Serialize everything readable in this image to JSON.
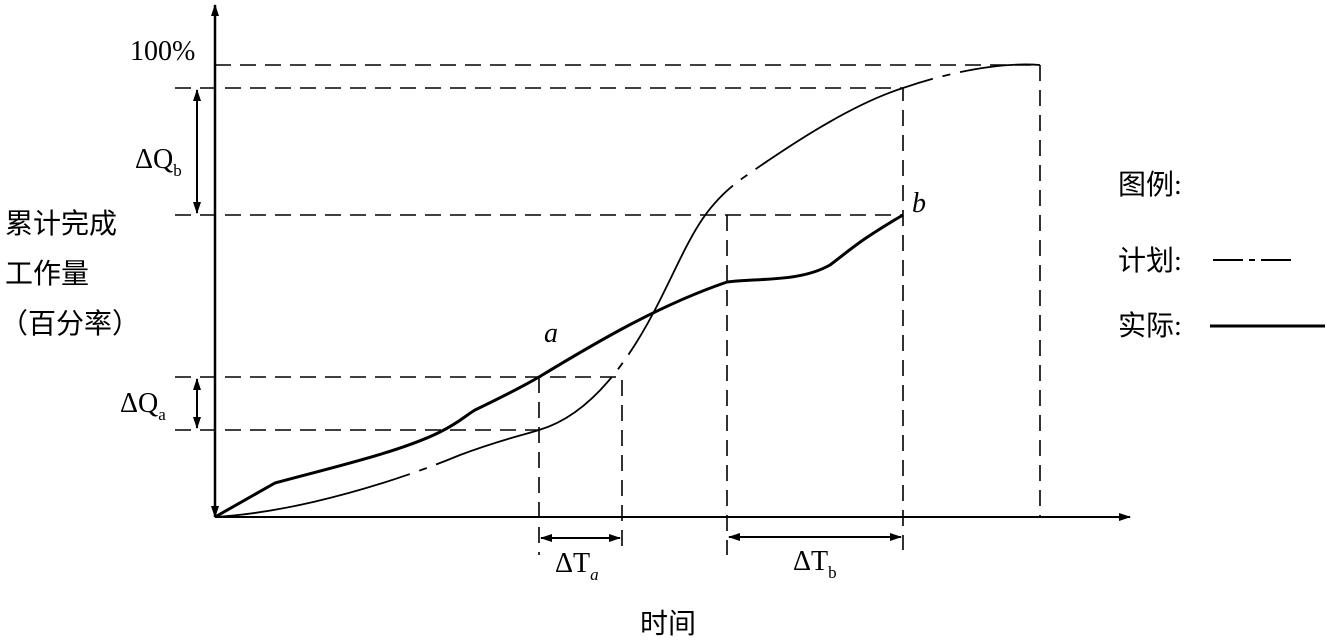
{
  "axis": {
    "y_max_label": "100%",
    "y_label": [
      "累计完成",
      "工作量",
      "（百分率）"
    ],
    "x_label": "时间"
  },
  "annotations": {
    "delta_q_b": {
      "main": "ΔQ",
      "sub": "b"
    },
    "delta_q_a": {
      "main": "ΔQ",
      "sub": "a"
    },
    "delta_t_a": {
      "main": "ΔT",
      "sub": "a"
    },
    "delta_t_b": {
      "main": "ΔT",
      "sub": "b"
    },
    "point_a": "a",
    "point_b": "b"
  },
  "legend": {
    "title": "图例:",
    "items": [
      {
        "label": "计划:"
      },
      {
        "label": "实际:"
      }
    ]
  }
}
